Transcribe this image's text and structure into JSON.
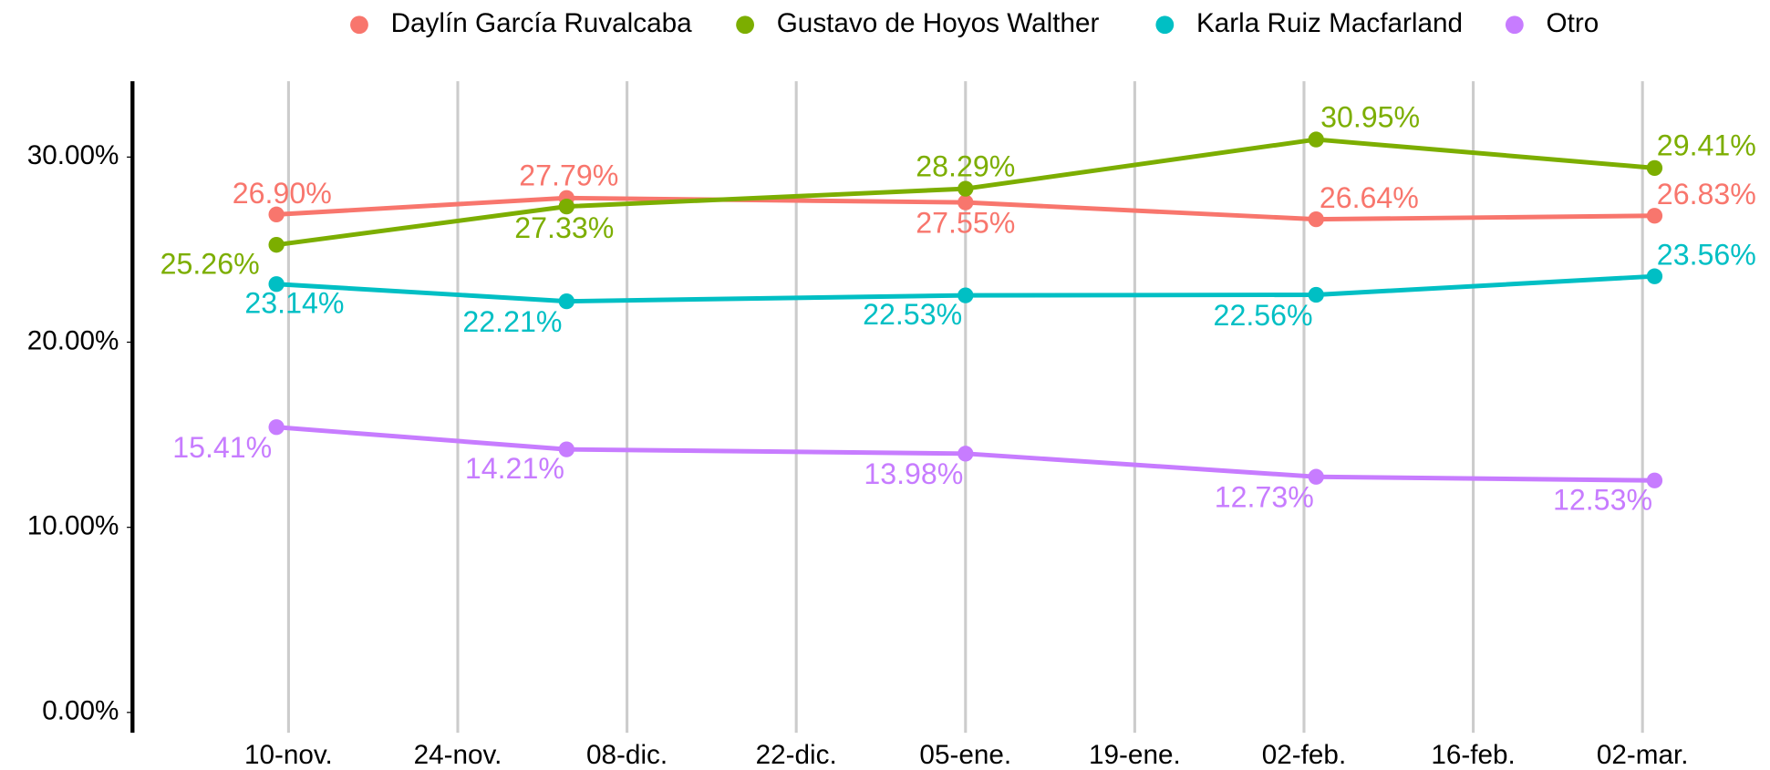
{
  "chart_data": {
    "type": "line",
    "x": [
      "09-nov.",
      "03-dic.",
      "05-ene.",
      "03-feb.",
      "03-mar."
    ],
    "xlim": [
      "28-oct.",
      "07-mar."
    ],
    "xticks": [
      "10-nov.",
      "24-nov.",
      "08-dic.",
      "22-dic.",
      "05-ene.",
      "19-ene.",
      "02-feb.",
      "16-feb.",
      "02-mar."
    ],
    "ylim": [
      -1.1,
      34.1
    ],
    "yticks": [
      {
        "value": 0,
        "label": "0.00%"
      },
      {
        "value": 10,
        "label": "10.00%"
      },
      {
        "value": 20,
        "label": "20.00%"
      },
      {
        "value": 30,
        "label": "30.00%"
      }
    ],
    "grid": "x",
    "legend": "top",
    "series": [
      {
        "name": "Daylín García Ruvalcaba",
        "color": "#F8766D",
        "values": [
          26.9,
          27.79,
          27.55,
          26.64,
          26.83
        ],
        "value_labels": [
          "26.90%",
          "27.79%",
          "27.55%",
          "26.64%",
          "26.83%"
        ]
      },
      {
        "name": "Gustavo de Hoyos Walther",
        "color": "#7CAE00",
        "values": [
          25.26,
          27.33,
          28.29,
          30.95,
          29.41
        ],
        "value_labels": [
          "25.26%",
          "27.33%",
          "28.29%",
          "30.95%",
          "29.41%"
        ]
      },
      {
        "name": "Karla Ruiz Macfarland",
        "color": "#00BFC4",
        "values": [
          23.14,
          22.21,
          22.53,
          22.56,
          23.56
        ],
        "value_labels": [
          "23.14%",
          "22.21%",
          "22.53%",
          "22.56%",
          "23.56%"
        ]
      },
      {
        "name": "Otro",
        "color": "#C77CFF",
        "values": [
          15.41,
          14.21,
          13.98,
          12.73,
          12.53
        ],
        "value_labels": [
          "15.41%",
          "14.21%",
          "13.98%",
          "12.73%",
          "12.53%"
        ]
      }
    ]
  }
}
